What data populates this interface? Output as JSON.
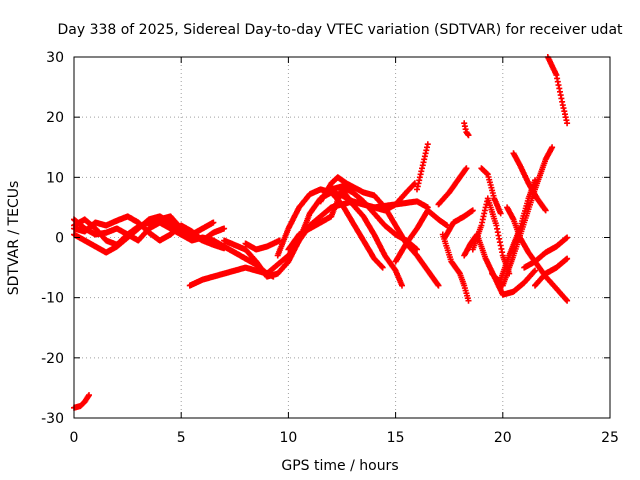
{
  "chart_data": {
    "type": "scatter",
    "title": "Day 338 of 2025, Sidereal Day-to-day VTEC variation (SDTVAR) for receiver udat",
    "xlabel": "GPS time / hours",
    "ylabel": "SDTVAR / TECUs",
    "xlim": [
      0,
      25
    ],
    "ylim": [
      -30,
      30
    ],
    "xticks": [
      0,
      5,
      10,
      15,
      20,
      25
    ],
    "yticks": [
      -30,
      -20,
      -10,
      0,
      10,
      20,
      30
    ],
    "xtick_labels": [
      "0",
      "5",
      "10",
      "15",
      "20",
      "25"
    ],
    "ytick_labels": [
      "-30",
      "-20",
      "-10",
      "0",
      "10",
      "20",
      "30"
    ],
    "grid": true,
    "marker": "+",
    "color": "#ff0000",
    "series": [
      {
        "name": "s1",
        "points": [
          [
            0,
            -28.3
          ],
          [
            0.3,
            -28
          ],
          [
            0.5,
            -27.3
          ],
          [
            0.7,
            -26.2
          ]
        ]
      },
      {
        "name": "s2",
        "points": [
          [
            0,
            3
          ],
          [
            0.5,
            1.5
          ],
          [
            1,
            0.5
          ],
          [
            1.5,
            0.8
          ],
          [
            2,
            1.5
          ],
          [
            2.5,
            0.5
          ],
          [
            3,
            -0.5
          ],
          [
            3.5,
            1.5
          ],
          [
            4,
            2.5
          ],
          [
            4.5,
            1.5
          ],
          [
            5,
            0.5
          ],
          [
            5.5,
            -0.5
          ],
          [
            6,
            0
          ],
          [
            6.5,
            -0.5
          ],
          [
            7,
            -1.5
          ],
          [
            7.5,
            -2.5
          ],
          [
            8,
            -3.5
          ],
          [
            8.5,
            -4.5
          ],
          [
            9,
            -6
          ],
          [
            9.3,
            -6.5
          ]
        ]
      },
      {
        "name": "s3",
        "points": [
          [
            0,
            2
          ],
          [
            0.5,
            3
          ],
          [
            1,
            1.5
          ],
          [
            1.5,
            -0.5
          ],
          [
            2,
            -1.2
          ],
          [
            2.5,
            0.5
          ],
          [
            3,
            1.8
          ],
          [
            3.5,
            2.5
          ],
          [
            4,
            3
          ],
          [
            4.5,
            3.5
          ],
          [
            5,
            1.5
          ],
          [
            5.5,
            0.5
          ],
          [
            6,
            -0.5
          ],
          [
            6.5,
            0.8
          ],
          [
            7,
            1.5
          ]
        ]
      },
      {
        "name": "s4",
        "points": [
          [
            0,
            1.5
          ],
          [
            0.5,
            1
          ],
          [
            1,
            2.5
          ],
          [
            1.5,
            2
          ],
          [
            2,
            2.8
          ],
          [
            2.5,
            3.5
          ],
          [
            3,
            2.5
          ],
          [
            3.5,
            0.8
          ],
          [
            4,
            -0.5
          ],
          [
            4.5,
            0.5
          ],
          [
            5,
            2
          ],
          [
            5.5,
            1
          ],
          [
            6,
            -0.5
          ],
          [
            6.5,
            -1.2
          ],
          [
            7,
            -1.8
          ]
        ]
      },
      {
        "name": "s5",
        "points": [
          [
            0,
            0.5
          ],
          [
            0.5,
            -0.5
          ],
          [
            1,
            -1.5
          ],
          [
            1.5,
            -2.5
          ],
          [
            2,
            -1.5
          ],
          [
            2.5,
            0
          ],
          [
            3,
            1.5
          ],
          [
            3.5,
            3
          ],
          [
            4,
            3.5
          ],
          [
            4.5,
            2.5
          ],
          [
            5,
            1
          ],
          [
            5.5,
            0.5
          ],
          [
            6,
            1.5
          ],
          [
            6.5,
            2.5
          ]
        ]
      },
      {
        "name": "s6",
        "points": [
          [
            5.4,
            -8
          ],
          [
            6,
            -7
          ],
          [
            7,
            -6
          ],
          [
            8,
            -5
          ],
          [
            9,
            -6
          ],
          [
            10,
            -3
          ],
          [
            11,
            2
          ],
          [
            12,
            5
          ],
          [
            13,
            6
          ],
          [
            14,
            5
          ],
          [
            15,
            5.5
          ],
          [
            16,
            6
          ],
          [
            16.5,
            5
          ]
        ]
      },
      {
        "name": "s7",
        "points": [
          [
            7,
            -0.5
          ],
          [
            8,
            -2
          ],
          [
            8.5,
            -4
          ],
          [
            9,
            -6.5
          ],
          [
            9.5,
            -6
          ],
          [
            10,
            -4
          ],
          [
            10.5,
            -0.5
          ],
          [
            11,
            4
          ],
          [
            11.5,
            6.5
          ],
          [
            12,
            7.5
          ],
          [
            12.5,
            7
          ],
          [
            13,
            6
          ],
          [
            13.5,
            5.5
          ],
          [
            14,
            5
          ],
          [
            14.5,
            4.5
          ],
          [
            15,
            5.5
          ],
          [
            15.5,
            7.5
          ],
          [
            15.9,
            9
          ]
        ]
      },
      {
        "name": "s8",
        "points": [
          [
            8,
            -1
          ],
          [
            8.5,
            -2
          ],
          [
            9,
            -1.5
          ],
          [
            9.6,
            -0.5
          ]
        ]
      },
      {
        "name": "s9",
        "points": [
          [
            9.5,
            -3
          ],
          [
            10,
            1.5
          ],
          [
            10.5,
            5
          ],
          [
            11,
            7.2
          ],
          [
            11.5,
            8
          ],
          [
            12,
            7.5
          ],
          [
            12.5,
            5.5
          ],
          [
            13,
            2.5
          ],
          [
            13.5,
            -0.5
          ],
          [
            14,
            -3.5
          ],
          [
            14.4,
            -5
          ]
        ]
      },
      {
        "name": "s10",
        "points": [
          [
            10,
            -2
          ],
          [
            10.5,
            0.5
          ],
          [
            11,
            1.5
          ],
          [
            11.5,
            2.5
          ],
          [
            12,
            3.5
          ],
          [
            12.5,
            8
          ],
          [
            13,
            5.5
          ],
          [
            13.5,
            3.5
          ],
          [
            14,
            0.5
          ],
          [
            14.5,
            -3
          ],
          [
            15,
            -5.5
          ],
          [
            15.3,
            -8
          ]
        ]
      },
      {
        "name": "s11",
        "points": [
          [
            11.5,
            6
          ],
          [
            12,
            9
          ],
          [
            12.3,
            10
          ],
          [
            12.7,
            9
          ],
          [
            13.5,
            7.5
          ],
          [
            14,
            7
          ],
          [
            14.5,
            5
          ],
          [
            15,
            2
          ],
          [
            15.5,
            -1
          ],
          [
            16,
            -3
          ],
          [
            16.5,
            -5.5
          ],
          [
            17,
            -8
          ]
        ]
      },
      {
        "name": "s12",
        "points": [
          [
            12,
            8
          ],
          [
            12.5,
            8.5
          ],
          [
            13,
            7.5
          ],
          [
            13.5,
            6
          ],
          [
            14,
            4
          ],
          [
            14.5,
            2
          ],
          [
            15,
            0.5
          ],
          [
            15.5,
            -0.5
          ],
          [
            16,
            -2
          ]
        ]
      },
      {
        "name": "s13",
        "points": [
          [
            15,
            -4
          ],
          [
            15.5,
            -1
          ],
          [
            16,
            1.5
          ],
          [
            16.5,
            4.5
          ],
          [
            17,
            3
          ],
          [
            17.4,
            2
          ]
        ]
      },
      {
        "name": "s14",
        "points": [
          [
            16,
            8
          ],
          [
            16.2,
            11
          ],
          [
            16.4,
            14
          ],
          [
            16.5,
            15.5
          ]
        ]
      },
      {
        "name": "s15",
        "points": [
          [
            17,
            5.5
          ],
          [
            17.5,
            7.5
          ],
          [
            18,
            10
          ],
          [
            18.3,
            11.5
          ]
        ]
      },
      {
        "name": "s16",
        "points": [
          [
            17.3,
            0
          ],
          [
            17.7,
            2.5
          ],
          [
            18.2,
            3.5
          ],
          [
            18.6,
            4.5
          ]
        ]
      },
      {
        "name": "s17",
        "points": [
          [
            17.2,
            0.5
          ],
          [
            17.6,
            -4
          ],
          [
            18,
            -6
          ],
          [
            18.2,
            -8
          ],
          [
            18.4,
            -10.5
          ]
        ]
      },
      {
        "name": "s18",
        "points": [
          [
            18.2,
            19
          ],
          [
            18.3,
            17.5
          ],
          [
            18.4,
            17
          ]
        ]
      },
      {
        "name": "s19",
        "points": [
          [
            18.2,
            -3
          ],
          [
            18.5,
            -1
          ],
          [
            18.8,
            0.5
          ],
          [
            19.2,
            -3.5
          ],
          [
            19.6,
            -6.5
          ],
          [
            20,
            -9.5
          ],
          [
            20.5,
            -9
          ],
          [
            21,
            -7.5
          ],
          [
            21.5,
            -5.5
          ]
        ]
      },
      {
        "name": "s20",
        "points": [
          [
            18.6,
            -2
          ],
          [
            19,
            2
          ],
          [
            19.3,
            6.5
          ],
          [
            19.7,
            2
          ],
          [
            20,
            -3
          ],
          [
            20.3,
            -6
          ]
        ]
      },
      {
        "name": "s21",
        "points": [
          [
            19,
            11.5
          ],
          [
            19.3,
            10.5
          ],
          [
            19.6,
            6.5
          ],
          [
            19.9,
            4
          ]
        ]
      },
      {
        "name": "s22",
        "points": [
          [
            19.5,
            -6
          ],
          [
            20,
            -8
          ],
          [
            20.5,
            -3
          ],
          [
            21,
            2.5
          ],
          [
            21.5,
            8
          ],
          [
            22,
            13
          ],
          [
            22.3,
            15
          ]
        ]
      },
      {
        "name": "s23",
        "points": [
          [
            20.2,
            5
          ],
          [
            20.5,
            3
          ],
          [
            20.8,
            0
          ],
          [
            21.2,
            -2.5
          ],
          [
            21.5,
            -4
          ],
          [
            22,
            -6.5
          ],
          [
            22.5,
            -8.5
          ],
          [
            23,
            -10.5
          ]
        ]
      },
      {
        "name": "s24",
        "points": [
          [
            20.5,
            14
          ],
          [
            20.8,
            12
          ],
          [
            21.2,
            9
          ],
          [
            21.6,
            6.5
          ],
          [
            22,
            4.5
          ]
        ]
      },
      {
        "name": "s25",
        "points": [
          [
            19.8,
            -8
          ],
          [
            20.3,
            -3
          ],
          [
            20.8,
            1.5
          ],
          [
            21.2,
            6.5
          ],
          [
            21.5,
            9.5
          ]
        ]
      },
      {
        "name": "s26",
        "points": [
          [
            21.5,
            -8
          ],
          [
            22,
            -6
          ],
          [
            22.5,
            -5
          ],
          [
            23,
            -3.5
          ]
        ]
      },
      {
        "name": "s27",
        "points": [
          [
            22.1,
            30
          ],
          [
            22.5,
            27
          ],
          [
            22.8,
            22
          ],
          [
            23,
            19
          ]
        ]
      },
      {
        "name": "s28",
        "points": [
          [
            21,
            -5
          ],
          [
            21.5,
            -4
          ],
          [
            22,
            -2.5
          ],
          [
            22.5,
            -1.5
          ],
          [
            23,
            0
          ]
        ]
      }
    ]
  }
}
